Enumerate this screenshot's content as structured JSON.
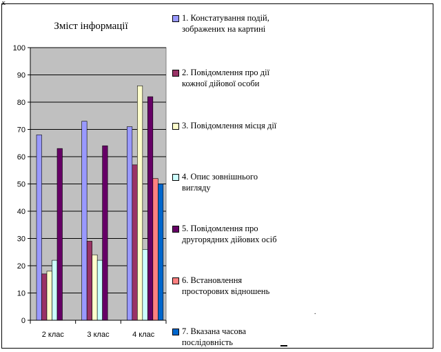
{
  "page": {
    "corner_mark": "к",
    "dot_mark": "."
  },
  "chart_data": {
    "type": "bar",
    "title": "Зміст інформації",
    "xlabel": "",
    "ylabel": "",
    "ylim": [
      0,
      100
    ],
    "yticks": [
      0,
      10,
      20,
      30,
      40,
      50,
      60,
      70,
      80,
      90,
      100
    ],
    "grid": true,
    "plot_background": "#c0c0c0",
    "legend_position": "right",
    "categories": [
      "2 клас",
      "3 клас",
      "4 клас"
    ],
    "series": [
      {
        "name": "1. Констатування подій, зображених на картині",
        "color": "#9999ff",
        "values": [
          68,
          73,
          71
        ]
      },
      {
        "name": "2. Повідомлення про дії кожної дійової особи",
        "color": "#993366",
        "values": [
          17,
          29,
          57
        ]
      },
      {
        "name": "3.  Повідомлення місця дії",
        "color": "#ffffcc",
        "values": [
          18,
          24,
          86
        ]
      },
      {
        "name": "4. Опис зовнішнього вигляду",
        "color": "#ccffff",
        "values": [
          22,
          22,
          26
        ]
      },
      {
        "name": "5. Повідомлення про другорядних дійових осіб",
        "color": "#660066",
        "values": [
          63,
          64,
          82
        ]
      },
      {
        "name": "6.  Встановлення просторових відношень",
        "color": "#ff8080",
        "values": [
          0,
          0,
          52
        ]
      },
      {
        "name": "7.  Вказана часова послідовність",
        "color": "#0066cc",
        "values": [
          0,
          0,
          50
        ]
      }
    ]
  }
}
